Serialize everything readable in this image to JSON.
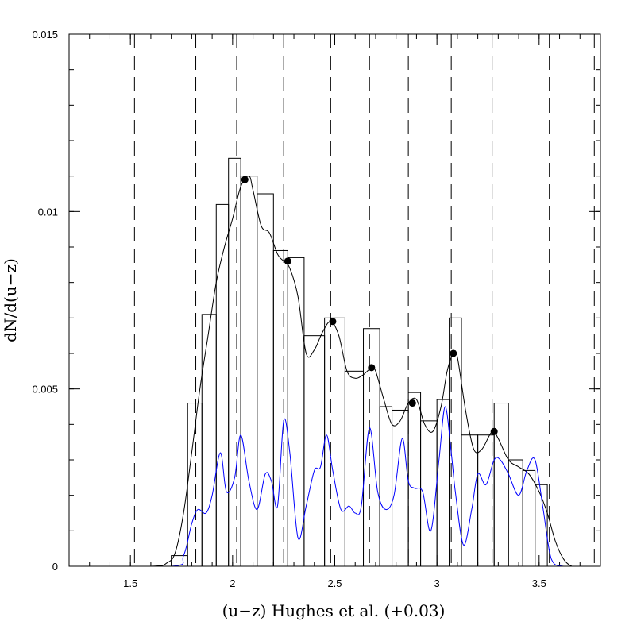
{
  "chart_data": {
    "type": "line",
    "xlabel": "(u−z) Hughes et al. (+0.03)",
    "ylabel": "dN/d(u−z)",
    "xlim": [
      1.2,
      3.8
    ],
    "ylim": [
      0,
      0.015
    ],
    "x_ticks": [
      {
        "value": 1.5,
        "label": "1.5"
      },
      {
        "value": 2.0,
        "label": "2"
      },
      {
        "value": 2.5,
        "label": "2.5"
      },
      {
        "value": 3.0,
        "label": "3"
      },
      {
        "value": 3.5,
        "label": "3.5"
      }
    ],
    "y_ticks": [
      {
        "value": 0,
        "label": "0"
      },
      {
        "value": 0.005,
        "label": "0.005"
      },
      {
        "value": 0.01,
        "label": "0.01"
      },
      {
        "value": 0.015,
        "label": "0.015"
      }
    ],
    "x_minor_step": 0.1,
    "y_minor_step": 0.001,
    "dashed_lines_x": [
      1.52,
      1.82,
      2.02,
      2.25,
      2.48,
      2.67,
      2.86,
      3.07,
      3.27,
      3.55,
      3.77
    ],
    "histogram": {
      "edges": [
        1.6,
        1.7,
        1.78,
        1.85,
        1.92,
        1.98,
        2.04,
        2.12,
        2.2,
        2.27,
        2.35,
        2.45,
        2.55,
        2.64,
        2.72,
        2.78,
        2.86,
        2.92,
        3.0,
        3.06,
        3.12,
        3.2,
        3.28,
        3.35,
        3.42,
        3.48,
        3.54,
        3.6
      ],
      "values": [
        0,
        0.0003,
        0.0046,
        0.0071,
        0.0102,
        0.0115,
        0.011,
        0.0105,
        0.0089,
        0.0087,
        0.0065,
        0.007,
        0.0055,
        0.0067,
        0.0045,
        0.0044,
        0.0049,
        0.0041,
        0.0047,
        0.007,
        0.0037,
        0.0037,
        0.0046,
        0.003,
        0.0027,
        0.0023,
        0
      ]
    },
    "series": [
      {
        "color": "#000000",
        "x": [
          1.2,
          1.6,
          1.68,
          1.72,
          1.76,
          1.8,
          1.84,
          1.88,
          1.92,
          1.96,
          2.0,
          2.04,
          2.08,
          2.1,
          2.14,
          2.18,
          2.22,
          2.25,
          2.28,
          2.32,
          2.36,
          2.4,
          2.44,
          2.48,
          2.52,
          2.56,
          2.6,
          2.64,
          2.68,
          2.7,
          2.74,
          2.78,
          2.82,
          2.86,
          2.9,
          2.94,
          2.98,
          3.02,
          3.05,
          3.08,
          3.1,
          3.14,
          3.18,
          3.22,
          3.27,
          3.3,
          3.35,
          3.4,
          3.45,
          3.5,
          3.54,
          3.58,
          3.62,
          3.66,
          3.7,
          3.8
        ],
        "y": [
          0,
          0,
          0.0001,
          0.0004,
          0.0015,
          0.0032,
          0.005,
          0.0065,
          0.008,
          0.009,
          0.0098,
          0.0107,
          0.011,
          0.0106,
          0.0096,
          0.0094,
          0.0088,
          0.0086,
          0.0084,
          0.0076,
          0.006,
          0.0061,
          0.0066,
          0.0069,
          0.0065,
          0.0055,
          0.0053,
          0.0054,
          0.0056,
          0.0055,
          0.0047,
          0.004,
          0.0041,
          0.0046,
          0.0047,
          0.004,
          0.0038,
          0.0045,
          0.0055,
          0.006,
          0.0059,
          0.0044,
          0.0033,
          0.0033,
          0.0038,
          0.0036,
          0.003,
          0.0028,
          0.0026,
          0.0021,
          0.0015,
          0.0007,
          0.0002,
          0,
          0,
          0
        ]
      },
      {
        "color": "#0000ff",
        "x": [
          1.2,
          1.7,
          1.76,
          1.8,
          1.83,
          1.87,
          1.9,
          1.94,
          1.97,
          2.01,
          2.04,
          2.08,
          2.12,
          2.16,
          2.19,
          2.22,
          2.25,
          2.28,
          2.32,
          2.36,
          2.4,
          2.43,
          2.46,
          2.49,
          2.53,
          2.57,
          2.6,
          2.63,
          2.67,
          2.71,
          2.75,
          2.79,
          2.83,
          2.86,
          2.89,
          2.93,
          2.97,
          3.01,
          3.04,
          3.07,
          3.09,
          3.13,
          3.17,
          3.2,
          3.24,
          3.28,
          3.31,
          3.35,
          3.4,
          3.44,
          3.48,
          3.52,
          3.56,
          3.62,
          3.8
        ],
        "y": [
          0,
          0,
          0.0003,
          0.0012,
          0.0016,
          0.0015,
          0.002,
          0.0032,
          0.0021,
          0.0025,
          0.0037,
          0.0024,
          0.0016,
          0.0026,
          0.0024,
          0.0017,
          0.0041,
          0.0032,
          0.0008,
          0.0017,
          0.0027,
          0.0028,
          0.0037,
          0.0027,
          0.0016,
          0.0017,
          0.0015,
          0.0017,
          0.0039,
          0.0021,
          0.0016,
          0.002,
          0.0036,
          0.0024,
          0.0022,
          0.0021,
          0.001,
          0.003,
          0.0045,
          0.0032,
          0.0021,
          0.0006,
          0.0016,
          0.0026,
          0.0023,
          0.003,
          0.003,
          0.0026,
          0.002,
          0.0027,
          0.003,
          0.0016,
          0.0002,
          0,
          0
        ]
      }
    ],
    "markers": {
      "x": [
        2.06,
        2.27,
        2.49,
        2.68,
        2.88,
        3.08,
        3.28
      ],
      "y": [
        0.0109,
        0.0086,
        0.0069,
        0.0056,
        0.0046,
        0.006,
        0.0038
      ]
    },
    "grid": false,
    "legend": "none"
  }
}
